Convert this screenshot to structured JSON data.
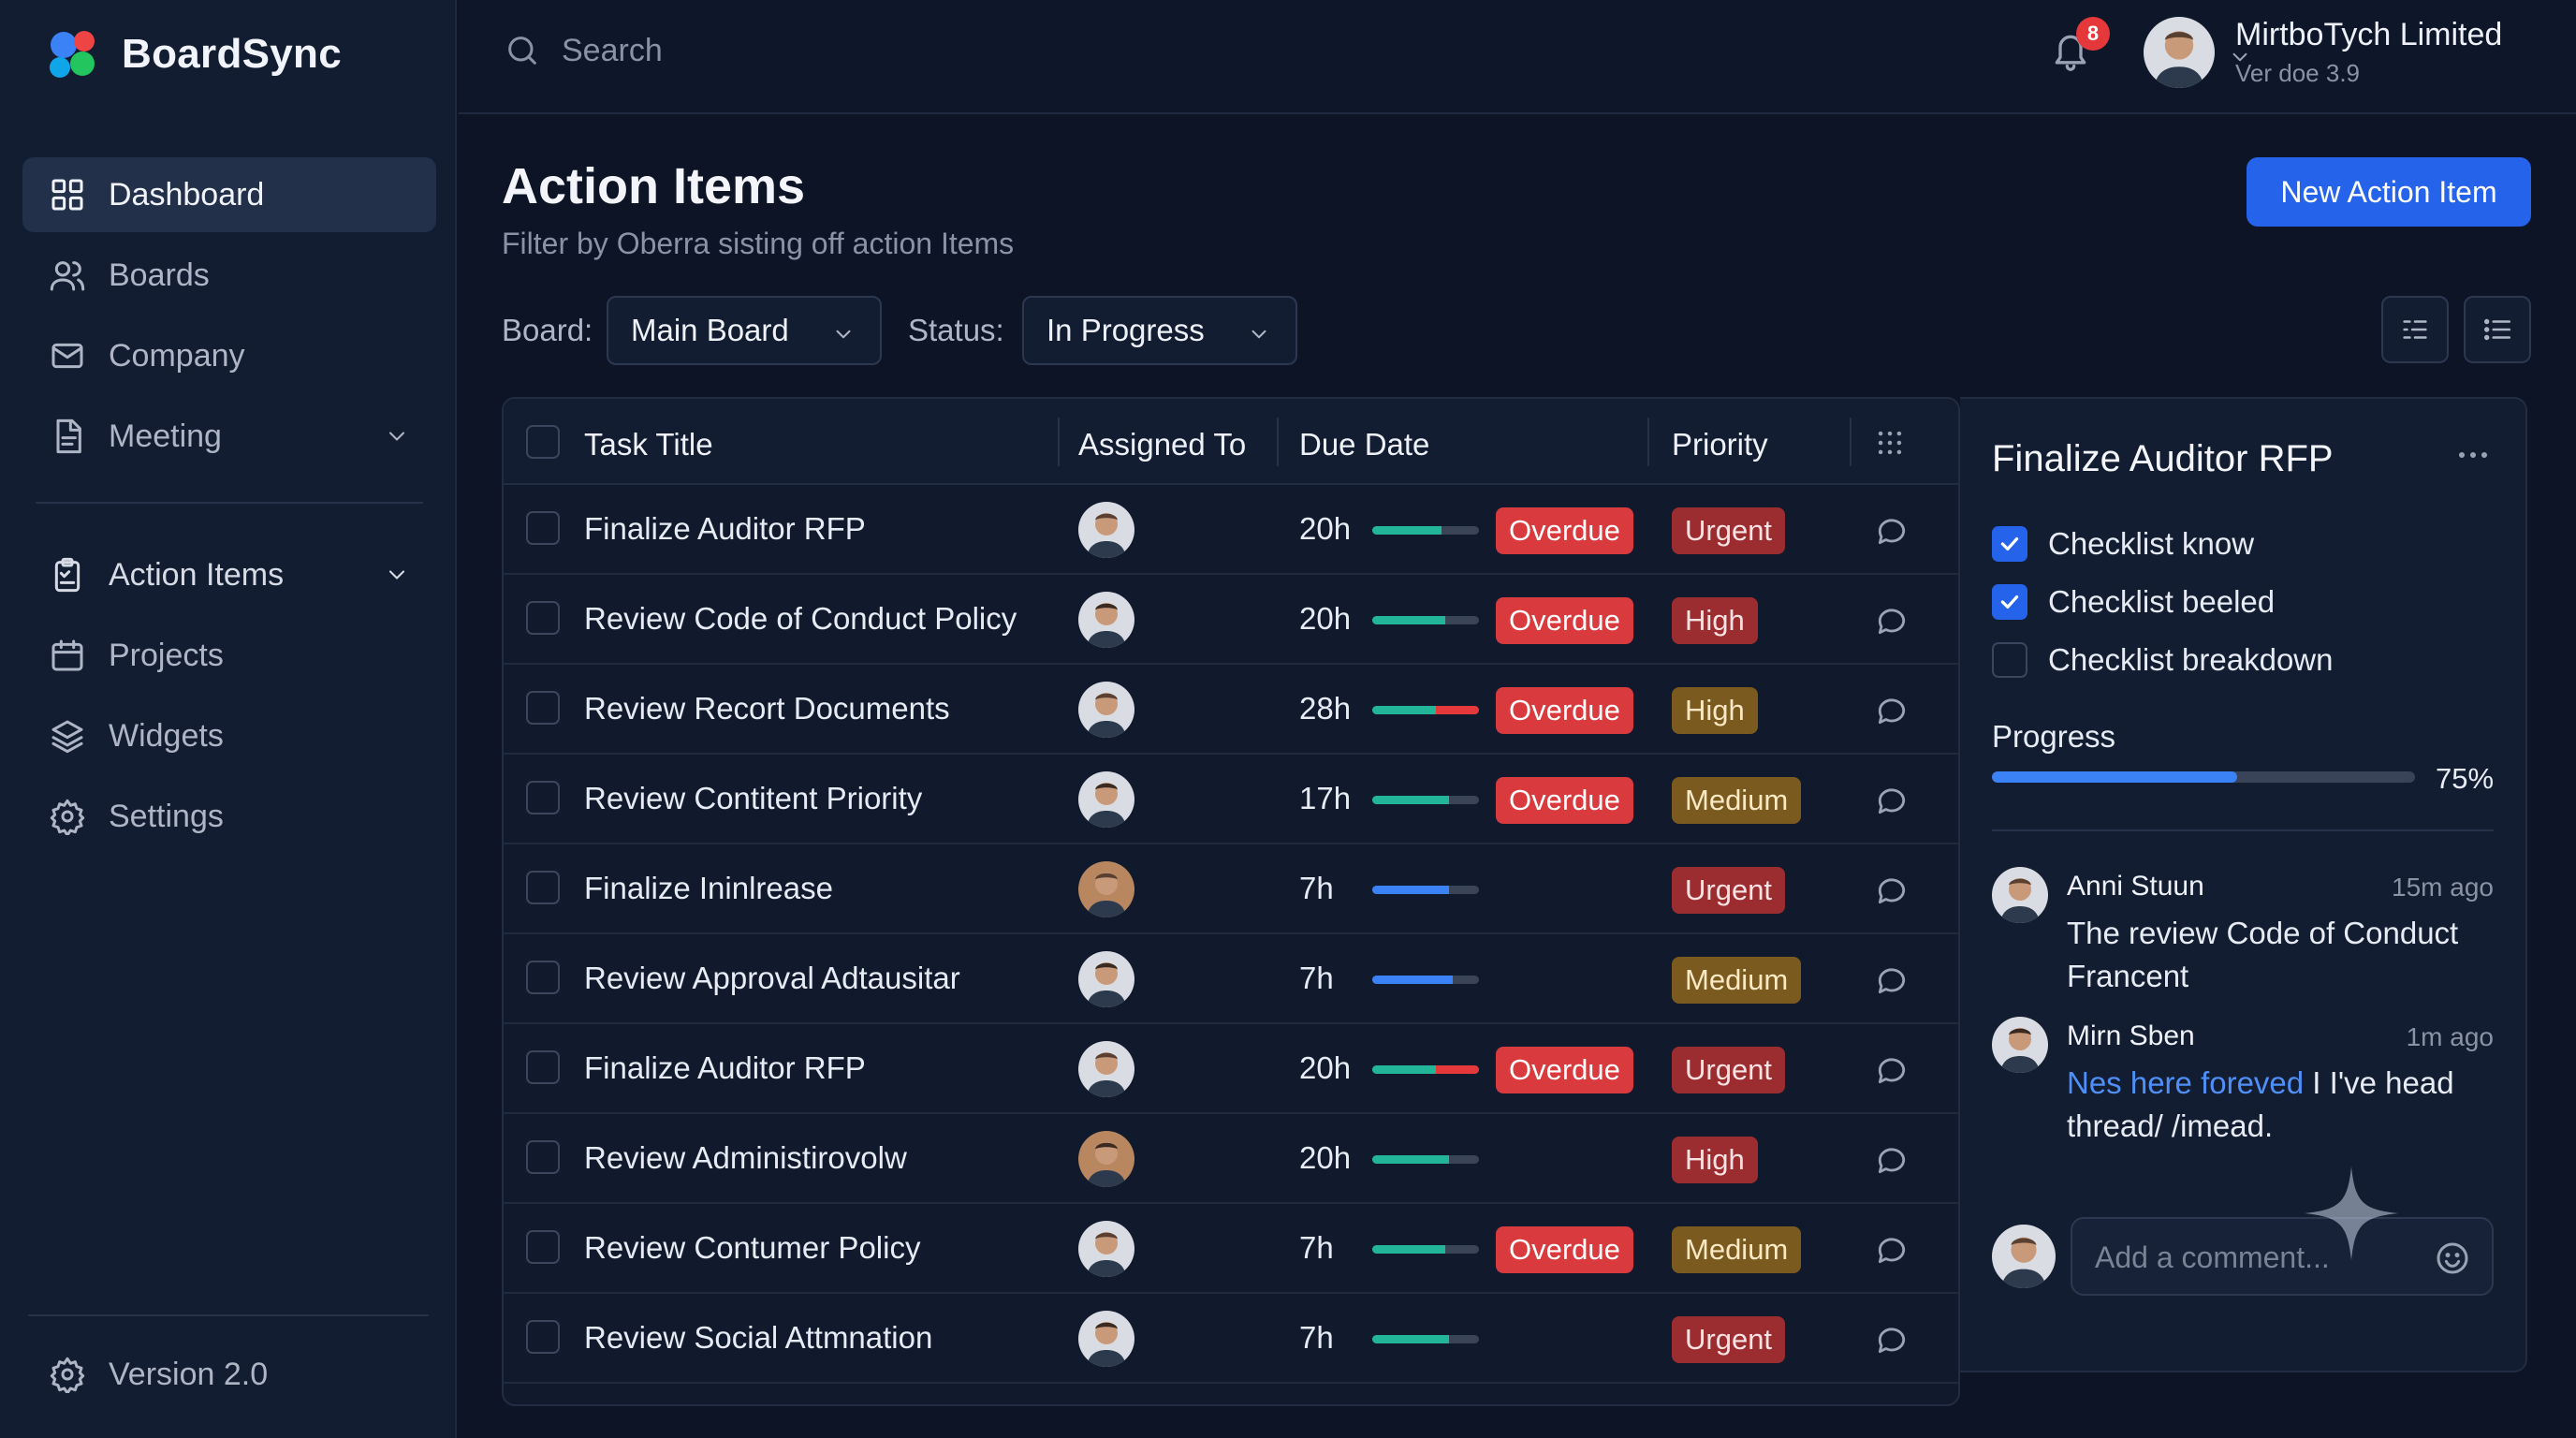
{
  "app": {
    "name": "BoardSync"
  },
  "sidebar": {
    "items": [
      {
        "label": "Dashboard",
        "icon": "grid-icon",
        "active": true
      },
      {
        "label": "Boards",
        "icon": "users-icon"
      },
      {
        "label": "Company",
        "icon": "mail-icon"
      },
      {
        "label": "Meeting",
        "icon": "document-icon",
        "expandable": true
      },
      {
        "label": "Action Items",
        "icon": "clipboard-icon",
        "expandable": true
      },
      {
        "label": "Projects",
        "icon": "calendar-icon"
      },
      {
        "label": "Widgets",
        "icon": "layers-icon"
      },
      {
        "label": "Settings",
        "icon": "gear-icon"
      }
    ],
    "version": "Version 2.0"
  },
  "topbar": {
    "search_placeholder": "Search",
    "notifications": "8",
    "user": {
      "name": "MirtboTych Limited",
      "sub": "Ver doe 3.9"
    }
  },
  "page": {
    "title": "Action Items",
    "subtitle": "Filter by Oberra sisting off action Items",
    "new_button": "New Action Item",
    "filters": {
      "board_label": "Board:",
      "board_value": "Main Board",
      "status_label": "Status:",
      "status_value": "In Progress"
    }
  },
  "table": {
    "columns": [
      "Task Title",
      "Assigned To",
      "Due Date",
      "Priority"
    ],
    "rows": [
      {
        "title": "Finalize Auditor RFP",
        "due": "20h",
        "progress": 0.65,
        "bar_color": "#22b59a",
        "overdue": "Overdue",
        "priority": "Urgent",
        "ptype": "urgent"
      },
      {
        "title": "Review Code of Conduct Policy",
        "due": "20h",
        "progress": 0.68,
        "bar_color": "#22b59a",
        "overdue": "Overdue",
        "priority": "High",
        "ptype": "high"
      },
      {
        "title": "Review Recort Documents",
        "due": "28h",
        "progress": 1.0,
        "bar_color": "#22b59a",
        "bar_tail": "#e5383b",
        "overdue": "Overdue",
        "priority": "High",
        "ptype": "high-amber"
      },
      {
        "title": "Review Contitent Priority",
        "due": "17h",
        "progress": 0.72,
        "bar_color": "#22b59a",
        "overdue": "Overdue",
        "priority": "Medium",
        "ptype": "medium"
      },
      {
        "title": "Finalize Ininlrease",
        "due": "7h",
        "progress": 0.72,
        "bar_color": "#3b82f6",
        "overdue": "",
        "priority": "Urgent",
        "ptype": "urgent"
      },
      {
        "title": "Review Approval Adtausitar",
        "due": "7h",
        "progress": 0.75,
        "bar_color": "#3b82f6",
        "overdue": "",
        "priority": "Medium",
        "ptype": "medium"
      },
      {
        "title": "Finalize Auditor RFP",
        "due": "20h",
        "progress": 1.0,
        "bar_color": "#22b59a",
        "bar_tail": "#e5383b",
        "overdue": "Overdue",
        "priority": "Urgent",
        "ptype": "urgent"
      },
      {
        "title": "Review Administirovolw",
        "due": "20h",
        "progress": 0.72,
        "bar_color": "#22b59a",
        "overdue": "",
        "priority": "High",
        "ptype": "high"
      },
      {
        "title": "Review Contumer Policy",
        "due": "7h",
        "progress": 0.68,
        "bar_color": "#22b59a",
        "overdue": "Overdue",
        "priority": "Medium",
        "ptype": "medium"
      },
      {
        "title": "Review Social Attmnation",
        "due": "7h",
        "progress": 0.72,
        "bar_color": "#22b59a",
        "overdue": "",
        "priority": "Urgent",
        "ptype": "urgent"
      }
    ]
  },
  "panel": {
    "title": "Finalize Auditor RFP",
    "checklist": [
      {
        "label": "Checklist know",
        "checked": true
      },
      {
        "label": "Checklist beeled",
        "checked": true
      },
      {
        "label": "Checklist breakdown",
        "checked": false
      }
    ],
    "progress_label": "Progress",
    "progress_value": 0.75,
    "progress_text": "75%",
    "comments": [
      {
        "name": "Anni Stuun",
        "time": "15m ago",
        "text": "The review Code of Conduct Francent"
      },
      {
        "name": "Mirn Sben",
        "time": "1m ago",
        "link": "Nes here foreved",
        "text": " I I've head thread/ /imead."
      }
    ],
    "comment_placeholder": "Add a comment..."
  }
}
